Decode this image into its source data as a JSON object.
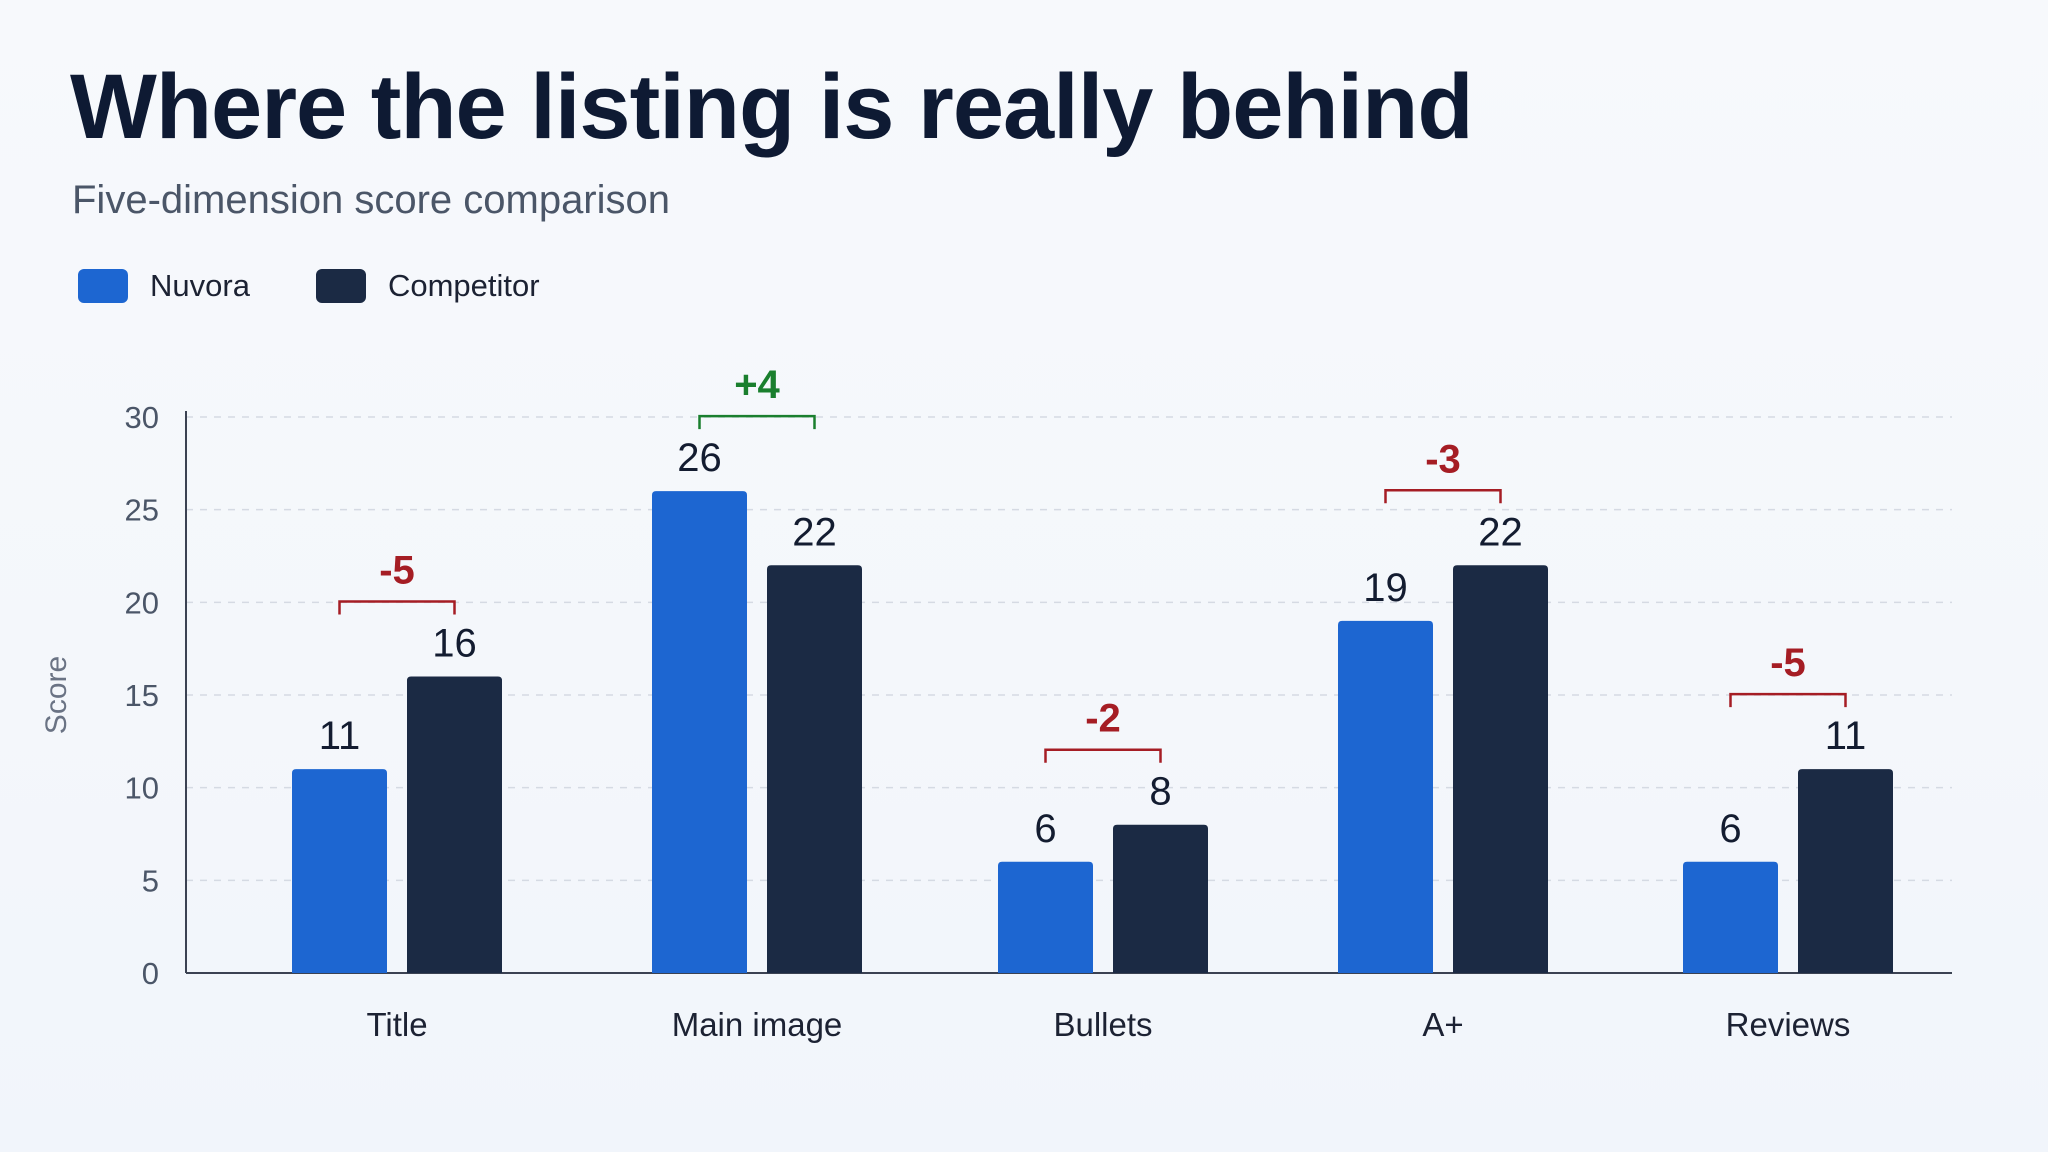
{
  "chart_data": {
    "type": "bar",
    "title": "Where the listing is really behind",
    "subtitle": "Five-dimension score comparison",
    "ylabel": "Score",
    "xlabel": "",
    "ylim": [
      0,
      30
    ],
    "yticks": [
      0,
      5,
      10,
      15,
      20,
      25,
      30
    ],
    "grid": true,
    "legend_position": "top-left",
    "categories": [
      "Title",
      "Main image",
      "Bullets",
      "A+",
      "Reviews"
    ],
    "series": [
      {
        "name": "Nuvora",
        "color": "#1d66d1",
        "values": [
          11,
          26,
          6,
          19,
          6
        ]
      },
      {
        "name": "Competitor",
        "color": "#1b2a44",
        "values": [
          16,
          22,
          8,
          22,
          11
        ]
      }
    ],
    "annotations": [
      {
        "category": "Title",
        "label": "-5",
        "color": "#a51d24"
      },
      {
        "category": "Main image",
        "label": "+4",
        "color": "#1a7f2e"
      },
      {
        "category": "Bullets",
        "label": "-2",
        "color": "#a51d24"
      },
      {
        "category": "A+",
        "label": "-3",
        "color": "#a51d24"
      },
      {
        "category": "Reviews",
        "label": "-5",
        "color": "#a51d24"
      }
    ]
  }
}
